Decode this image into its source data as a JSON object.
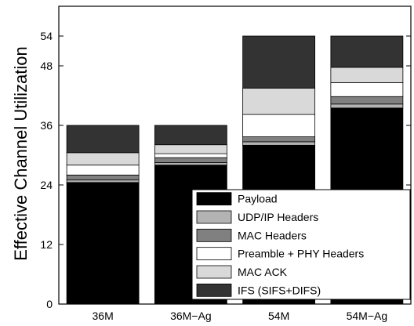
{
  "chart_data": {
    "type": "bar",
    "stacked": true,
    "title": "",
    "xlabel": "",
    "ylabel": "Effective Channel Utilization",
    "ylim": [
      0,
      60
    ],
    "yticks": [
      0,
      12,
      24,
      36,
      48,
      54
    ],
    "categories": [
      "36M",
      "36M−Ag",
      "54M",
      "54M−Ag"
    ],
    "series": [
      {
        "name": "Payload",
        "color": "#000000",
        "values": [
          24.5,
          28.0,
          32.0,
          39.5
        ]
      },
      {
        "name": "UDP/IP Headers",
        "color": "#b3b3b3",
        "values": [
          0.5,
          0.5,
          0.7,
          0.8
        ]
      },
      {
        "name": "MAC Headers",
        "color": "#808080",
        "values": [
          1.0,
          1.0,
          1.0,
          1.5
        ]
      },
      {
        "name": "Preamble + PHY Headers",
        "color": "#ffffff",
        "values": [
          2.0,
          0.8,
          4.5,
          2.8
        ]
      },
      {
        "name": "MAC ACK",
        "color": "#d9d9d9",
        "values": [
          2.5,
          1.8,
          5.3,
          3.1
        ]
      },
      {
        "name": "IFS (SIFS+DIFS)",
        "color": "#333333",
        "values": [
          5.5,
          3.9,
          10.5,
          6.3
        ]
      }
    ],
    "legend_position": "bottom-right",
    "grid": false
  }
}
